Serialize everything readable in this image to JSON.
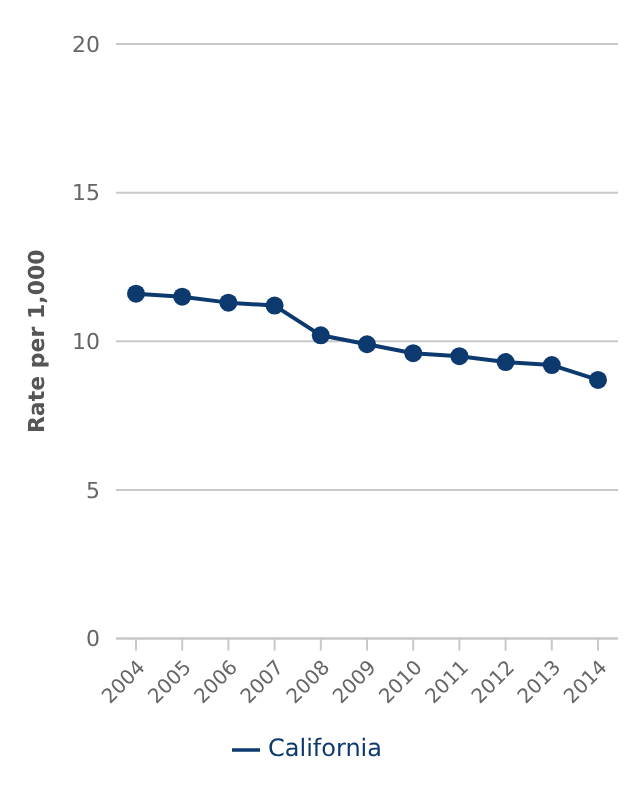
{
  "chart_data": {
    "type": "line",
    "ylabel": "Rate per 1,000",
    "categories": [
      "2004",
      "2005",
      "2006",
      "2007",
      "2008",
      "2009",
      "2010",
      "2011",
      "2012",
      "2013",
      "2014"
    ],
    "series": [
      {
        "name": "California",
        "color": "#0d3a6e",
        "values": [
          11.6,
          11.5,
          11.3,
          11.2,
          10.2,
          9.9,
          9.6,
          9.5,
          9.3,
          9.2,
          8.7
        ]
      }
    ],
    "ylim": [
      0,
      20
    ],
    "yticks": [
      0,
      5,
      10,
      15,
      20
    ],
    "grid": "y",
    "legend": "bottom",
    "marker": "circle"
  }
}
